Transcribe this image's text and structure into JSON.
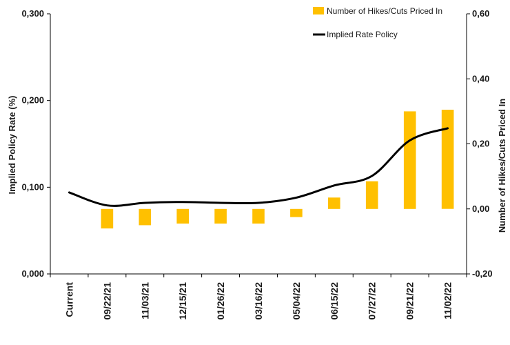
{
  "chart_data": {
    "type": "bar",
    "title": "",
    "categories": [
      "Current",
      "09/22/21",
      "11/03/21",
      "12/15/21",
      "01/26/22",
      "03/16/22",
      "05/04/22",
      "06/15/22",
      "07/27/22",
      "09/21/22",
      "11/02/22"
    ],
    "series": [
      {
        "name": "Number of Hikes/Cuts Priced In",
        "type": "bar",
        "axis": "right",
        "color": "#FFC000",
        "values": [
          null,
          -0.06,
          -0.05,
          -0.045,
          -0.045,
          -0.045,
          -0.025,
          0.035,
          0.085,
          0.3,
          0.305
        ]
      },
      {
        "name": "Implied Rate Policy",
        "type": "line",
        "axis": "left",
        "color": "#000000",
        "values": [
          0.094,
          0.079,
          0.082,
          0.083,
          0.082,
          0.082,
          0.088,
          0.102,
          0.113,
          0.154,
          0.168
        ]
      }
    ],
    "ylabel": "Implied Policy Rate (%)",
    "ylabel_right": "Number of Hikes/Cuts Priced In",
    "ylim": [
      0,
      0.3
    ],
    "ylim_right": [
      -0.2,
      0.6
    ],
    "yticks": [
      "0,000",
      "0,100",
      "0,200",
      "0,300"
    ],
    "yticks_right": [
      "-0,20",
      "0,00",
      "0,20",
      "0,40",
      "0,60"
    ],
    "grid": false,
    "legend_position": "top-right"
  }
}
